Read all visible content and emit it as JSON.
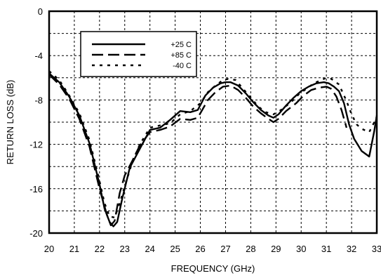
{
  "chart_data": {
    "type": "line",
    "title": "",
    "xlabel": "FREQUENCY (GHz)",
    "ylabel": "RETURN LOSS (dB)",
    "xlim": [
      20,
      33
    ],
    "ylim": [
      -20,
      0
    ],
    "xticks": [
      20,
      21,
      22,
      23,
      24,
      25,
      26,
      27,
      28,
      29,
      30,
      31,
      32,
      33
    ],
    "yticks": [
      0,
      -4,
      -8,
      -12,
      -16,
      -20
    ],
    "grid": true,
    "legend_position": "top-left inside",
    "series": [
      {
        "name": "+25 C",
        "style": "solid",
        "x": [
          20.0,
          20.4,
          20.8,
          21.2,
          21.6,
          22.0,
          22.2,
          22.4,
          22.55,
          22.7,
          22.9,
          23.2,
          23.6,
          24.0,
          24.4,
          24.8,
          25.2,
          25.6,
          25.9,
          26.2,
          26.5,
          26.8,
          27.0,
          27.2,
          27.5,
          27.8,
          28.1,
          28.4,
          28.7,
          28.9,
          29.1,
          29.4,
          29.7,
          30.0,
          30.3,
          30.6,
          30.9,
          31.1,
          31.3,
          31.5,
          31.7,
          31.9,
          32.1,
          32.4,
          32.7,
          32.9,
          33.0
        ],
        "y": [
          -5.6,
          -6.4,
          -7.7,
          -9.4,
          -11.9,
          -15.6,
          -17.8,
          -19.0,
          -19.4,
          -19.0,
          -16.9,
          -14.1,
          -12.4,
          -10.7,
          -10.5,
          -9.8,
          -9.0,
          -9.1,
          -8.9,
          -7.6,
          -6.9,
          -6.5,
          -6.4,
          -6.4,
          -6.7,
          -7.4,
          -8.2,
          -8.9,
          -9.4,
          -9.6,
          -9.3,
          -8.5,
          -7.8,
          -7.2,
          -6.8,
          -6.5,
          -6.4,
          -6.5,
          -6.8,
          -7.2,
          -8.3,
          -10.2,
          -11.5,
          -12.6,
          -13.1,
          -10.8,
          -9.4
        ]
      },
      {
        "name": "+85 C",
        "style": "dashed",
        "x": [
          20.0,
          20.4,
          20.8,
          21.2,
          21.6,
          22.0,
          22.3,
          22.45,
          22.6,
          22.8,
          23.0,
          23.3,
          23.6,
          24.0,
          24.4,
          24.8,
          25.2,
          25.6,
          25.9,
          26.3,
          26.6,
          26.9,
          27.2,
          27.5,
          27.8,
          28.1,
          28.4,
          28.7,
          28.9,
          29.1,
          29.4,
          29.8,
          30.1,
          30.4,
          30.7,
          31.0,
          31.2,
          31.4,
          31.6,
          31.8
        ],
        "y": [
          -5.7,
          -6.6,
          -7.9,
          -9.7,
          -12.2,
          -16.0,
          -18.4,
          -19.3,
          -18.9,
          -16.4,
          -14.8,
          -13.5,
          -12.1,
          -10.9,
          -10.7,
          -10.4,
          -9.7,
          -9.8,
          -9.6,
          -8.0,
          -7.3,
          -6.8,
          -6.7,
          -7.1,
          -7.8,
          -8.6,
          -9.2,
          -9.7,
          -10.0,
          -9.7,
          -9.0,
          -8.3,
          -7.6,
          -7.1,
          -6.9,
          -6.8,
          -7.0,
          -7.7,
          -8.9,
          -10.5
        ]
      },
      {
        "name": "-40 C",
        "style": "dotted",
        "x": [
          20.0,
          20.4,
          20.8,
          21.2,
          21.6,
          22.0,
          22.2,
          22.4,
          22.6,
          22.8,
          23.0,
          23.3,
          23.6,
          24.0,
          24.4,
          24.8,
          25.2,
          25.6,
          26.0,
          26.3,
          26.6,
          26.9,
          27.1,
          27.4,
          27.7,
          28.0,
          28.3,
          28.6,
          28.9,
          29.2,
          29.6,
          29.9,
          30.2,
          30.5,
          30.8,
          31.0,
          31.2,
          31.5,
          31.8,
          32.0,
          32.2,
          32.4,
          32.7,
          32.9,
          33.0
        ],
        "y": [
          -5.4,
          -6.2,
          -7.6,
          -9.2,
          -11.6,
          -15.3,
          -17.3,
          -18.5,
          -18.6,
          -17.3,
          -15.8,
          -13.6,
          -12.0,
          -10.5,
          -10.3,
          -10.1,
          -9.3,
          -9.0,
          -8.3,
          -7.3,
          -6.7,
          -6.2,
          -6.1,
          -6.2,
          -7.0,
          -7.8,
          -8.6,
          -9.1,
          -9.3,
          -8.9,
          -8.2,
          -7.5,
          -7.0,
          -6.5,
          -6.2,
          -6.0,
          -6.1,
          -6.6,
          -8.1,
          -9.3,
          -10.2,
          -10.6,
          -10.9,
          -10.0,
          -9.5
        ]
      }
    ]
  }
}
